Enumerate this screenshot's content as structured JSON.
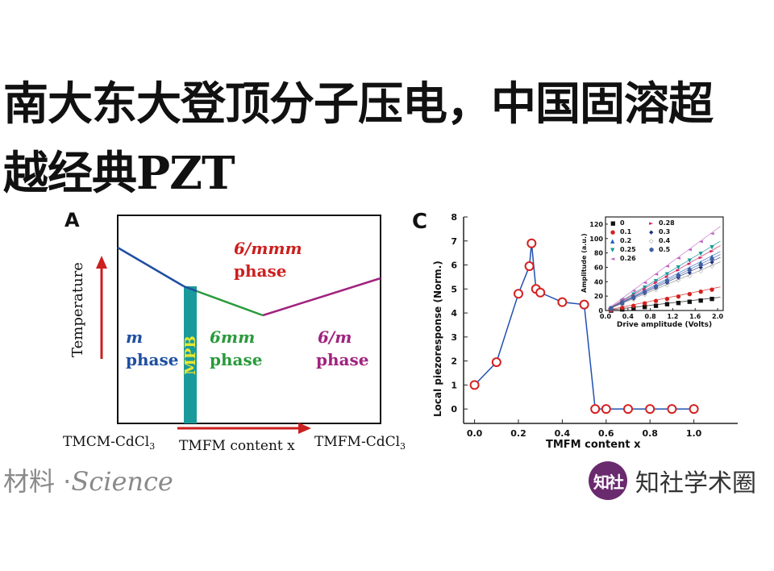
{
  "headline": {
    "line1": "南大东大登顶分子压电，中国固溶超",
    "line2": "越经典PZT"
  },
  "figure_a": {
    "panel_letter": "A",
    "y_axis_label": "Temperature",
    "x_axis_label": "TMFM content x",
    "x_left_label": "TMCM-CdCl",
    "x_right_label": "TMFM-CdCl",
    "subscript": "3",
    "region_top_symbol": "6/mmm",
    "region_top_word": "phase",
    "region_left_symbol": "m",
    "region_left_word": "phase",
    "region_mid_symbol": "6mm",
    "region_mid_word": "phase",
    "region_right_symbol": "6/m",
    "region_right_word": "phase",
    "mpb_label": "MPB",
    "colors": {
      "left": "#1f4fa0",
      "mid": "#2a9a3c",
      "right": "#a0237e",
      "top": "#cc1f1f",
      "mpb": "#1a9a9a",
      "mpb_text": "#e8e830",
      "arrow": "#cc1f1f"
    }
  },
  "chart_data": [
    {
      "type": "line",
      "title": "",
      "panel_letter": "C",
      "xlabel": "TMFM content x",
      "ylabel": "Local piezoresponse (Norm.)",
      "xlim": [
        -0.05,
        1.2
      ],
      "ylim": [
        -0.6,
        8
      ],
      "x_ticks": [
        "0.0",
        "0.2",
        "0.4",
        "0.6",
        "0.8",
        "1.0"
      ],
      "y_ticks": [
        "0",
        "1",
        "2",
        "3",
        "4",
        "5",
        "6",
        "7",
        "8"
      ],
      "series": [
        {
          "name": "piezoresponse",
          "x": [
            0,
            0.1,
            0.2,
            0.25,
            0.26,
            0.28,
            0.3,
            0.4,
            0.5,
            0.55,
            0.6,
            0.7,
            0.8,
            0.9,
            1.0
          ],
          "y": [
            1.0,
            1.95,
            4.8,
            5.95,
            6.9,
            5.0,
            4.85,
            4.45,
            4.35,
            0,
            0,
            0,
            0,
            0,
            0
          ]
        }
      ]
    },
    {
      "type": "scatter",
      "title": "",
      "xlabel": "Drive amplitude (Volts)",
      "ylabel": "Amplitude (a.u.)",
      "xlim": [
        0,
        2.1
      ],
      "ylim": [
        0,
        130
      ],
      "x_ticks": [
        "0.0",
        "0.4",
        "0.8",
        "1.2",
        "1.6",
        "2.0"
      ],
      "y_ticks": [
        "0",
        "20",
        "40",
        "60",
        "80",
        "100",
        "120"
      ],
      "legend_position": "top-left",
      "series": [
        {
          "name": "0",
          "slope": 9,
          "color": "#111111",
          "marker": "■"
        },
        {
          "name": "0.1",
          "slope": 16,
          "color": "#d42020",
          "marker": "●"
        },
        {
          "name": "0.2",
          "slope": 40,
          "color": "#2060c0",
          "marker": "▲"
        },
        {
          "name": "0.25",
          "slope": 47,
          "color": "#1a9a9a",
          "marker": "▼"
        },
        {
          "name": "0.26",
          "slope": 57,
          "color": "#c060c0",
          "marker": "◄"
        },
        {
          "name": "0.28",
          "slope": 44,
          "color": "#d42060",
          "marker": "►"
        },
        {
          "name": "0.3",
          "slope": 36,
          "color": "#203080",
          "marker": "◆"
        },
        {
          "name": "0.4",
          "slope": 33,
          "color": "#808080",
          "marker": "◇"
        },
        {
          "name": "0.5",
          "slope": 38,
          "color": "#4060a0",
          "marker": "⬢"
        }
      ],
      "x_samples": [
        0.1,
        0.3,
        0.5,
        0.7,
        0.9,
        1.1,
        1.3,
        1.5,
        1.7,
        1.9
      ]
    }
  ],
  "caption": {
    "prefix": "材料 ·",
    "journal": "Science"
  },
  "brand": {
    "logo_text": "知社",
    "name": "知社学术圈"
  }
}
